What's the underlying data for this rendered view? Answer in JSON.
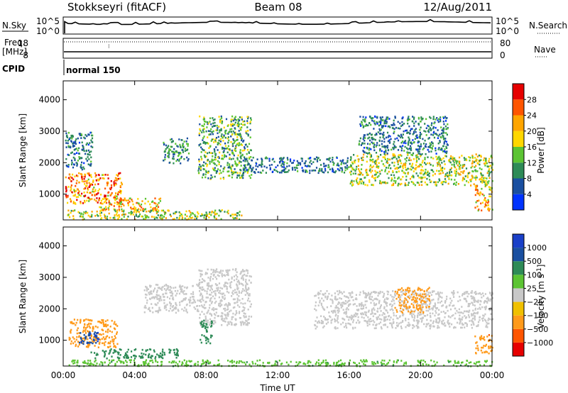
{
  "header": {
    "station": "Stokkseyri (fitACF)",
    "beam": "Beam 08",
    "date": "12/Aug/2011"
  },
  "strips": {
    "nsky_label": "N.Sky",
    "nsky_ticks": [
      "10^5",
      "10^0"
    ],
    "nsearch_label": "N.Search",
    "nsearch_ticks": [
      "10^5",
      "10^0"
    ],
    "freq_label": "Freq.",
    "freq_unit": "[MHz]",
    "freq_ticks": [
      "18",
      "8"
    ],
    "nave_label": "Nave",
    "nave_ticks": [
      "80",
      "0"
    ],
    "cpid_label": "CPID",
    "cpid_value": "normal 150"
  },
  "colors": {
    "power": [
      "#0033ff",
      "#1a4fa0",
      "#2e8b57",
      "#5cc433",
      "#ffd700",
      "#ffa500",
      "#ff5500",
      "#e60000"
    ],
    "velocity": [
      "#e60000",
      "#ff5500",
      "#ff9a1a",
      "#f0c000",
      "#c8c8c8",
      "#5cc433",
      "#2e8b57",
      "#1a4fa0",
      "#1a40c8"
    ]
  },
  "chart_data": [
    {
      "type": "heatmap",
      "panel": "power",
      "xlabel": "Time UT",
      "ylabel": "Slant Range [km]",
      "ylim": [
        180,
        4600
      ],
      "xlim": [
        "00:00",
        "24:00"
      ],
      "x_ticks": [
        "00:00",
        "04:00",
        "08:00",
        "12:00",
        "16:00",
        "20:00",
        "00:00"
      ],
      "y_ticks": [
        1000,
        2000,
        3000,
        4000
      ],
      "colorbar": {
        "label": "Power [dB]",
        "ticks": [
          "4",
          "8",
          "12",
          "16",
          "20",
          "24",
          "28"
        ],
        "range": [
          0,
          32
        ]
      },
      "regions": [
        {
          "t": [
            0.1,
            3.3
          ],
          "r": [
            700,
            1700
          ],
          "value": 24
        },
        {
          "t": [
            2.0,
            5.5
          ],
          "r": [
            500,
            900
          ],
          "value": 20
        },
        {
          "t": [
            0.2,
            10.0
          ],
          "r": [
            220,
            520
          ],
          "value": 16
        },
        {
          "t": [
            0.1,
            1.6
          ],
          "r": [
            1800,
            3000
          ],
          "value": 8
        },
        {
          "t": [
            5.5,
            7.0
          ],
          "r": [
            2000,
            2800
          ],
          "value": 10
        },
        {
          "t": [
            7.5,
            10.5
          ],
          "r": [
            1500,
            3500
          ],
          "value": 12
        },
        {
          "t": [
            10.0,
            16.0
          ],
          "r": [
            1700,
            2200
          ],
          "value": 8
        },
        {
          "t": [
            16.0,
            24.0
          ],
          "r": [
            1300,
            2300
          ],
          "value": 16
        },
        {
          "t": [
            16.5,
            21.5
          ],
          "r": [
            2300,
            3500
          ],
          "value": 8
        },
        {
          "t": [
            23.0,
            24.0
          ],
          "r": [
            500,
            1300
          ],
          "value": 20
        }
      ]
    },
    {
      "type": "heatmap",
      "panel": "velocity",
      "xlabel": "Time UT",
      "ylabel": "Slant Range [km]",
      "ylim": [
        180,
        4600
      ],
      "xlim": [
        "00:00",
        "24:00"
      ],
      "x_ticks": [
        "00:00",
        "04:00",
        "08:00",
        "12:00",
        "16:00",
        "20:00",
        "00:00"
      ],
      "y_ticks": [
        1000,
        2000,
        3000,
        4000
      ],
      "colorbar": {
        "label": "Velocity [m s^-1]",
        "ticks": [
          "1000",
          "500",
          "100",
          "25",
          "−25",
          "−100",
          "−500",
          "−1000"
        ]
      },
      "regions": [
        {
          "t": [
            0.3,
            3.0
          ],
          "r": [
            800,
            1700
          ],
          "value": -150
        },
        {
          "t": [
            0.8,
            2.0
          ],
          "r": [
            900,
            1300
          ],
          "value": 900
        },
        {
          "t": [
            1.5,
            6.5
          ],
          "r": [
            450,
            750
          ],
          "value": 300
        },
        {
          "t": [
            0.3,
            24.0
          ],
          "r": [
            200,
            400
          ],
          "value": 80
        },
        {
          "t": [
            4.5,
            7.5
          ],
          "r": [
            1900,
            2800
          ],
          "value": 0
        },
        {
          "t": [
            7.5,
            10.5
          ],
          "r": [
            1500,
            3300
          ],
          "value": 0
        },
        {
          "t": [
            7.6,
            8.3
          ],
          "r": [
            900,
            1700
          ],
          "value": 300
        },
        {
          "t": [
            14.0,
            24.0
          ],
          "r": [
            1400,
            2600
          ],
          "value": 0
        },
        {
          "t": [
            18.5,
            20.5
          ],
          "r": [
            1900,
            2700
          ],
          "value": -150
        },
        {
          "t": [
            23.0,
            24.0
          ],
          "r": [
            600,
            1200
          ],
          "value": -400
        }
      ]
    }
  ]
}
